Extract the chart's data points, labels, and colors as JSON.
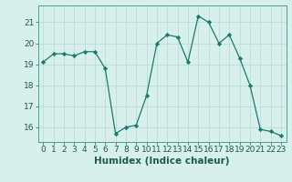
{
  "x": [
    0,
    1,
    2,
    3,
    4,
    5,
    6,
    7,
    8,
    9,
    10,
    11,
    12,
    13,
    14,
    15,
    16,
    17,
    18,
    19,
    20,
    21,
    22,
    23
  ],
  "y": [
    19.1,
    19.5,
    19.5,
    19.4,
    19.6,
    19.6,
    18.8,
    15.7,
    16.0,
    16.1,
    17.5,
    20.0,
    20.4,
    20.3,
    19.1,
    21.3,
    21.0,
    20.0,
    20.4,
    19.3,
    18.0,
    15.9,
    15.8,
    15.6
  ],
  "line_color": "#1a7a6e",
  "marker_color": "#1a7a6e",
  "bg_color": "#d8f0ec",
  "grid_color": "#b8d8d4",
  "xlabel": "Humidex (Indice chaleur)",
  "ylabel_ticks": [
    16,
    17,
    18,
    19,
    20,
    21
  ],
  "ylim": [
    15.3,
    21.8
  ],
  "xlim": [
    -0.5,
    23.5
  ],
  "xticks": [
    0,
    1,
    2,
    3,
    4,
    5,
    6,
    7,
    8,
    9,
    10,
    11,
    12,
    13,
    14,
    15,
    16,
    17,
    18,
    19,
    20,
    21,
    22,
    23
  ],
  "xtick_labels": [
    "0",
    "1",
    "2",
    "3",
    "4",
    "5",
    "6",
    "7",
    "8",
    "9",
    "10",
    "11",
    "12",
    "13",
    "14",
    "15",
    "16",
    "17",
    "18",
    "19",
    "20",
    "21",
    "22",
    "23"
  ],
  "tick_fontsize": 6.5,
  "label_fontsize": 7.5
}
